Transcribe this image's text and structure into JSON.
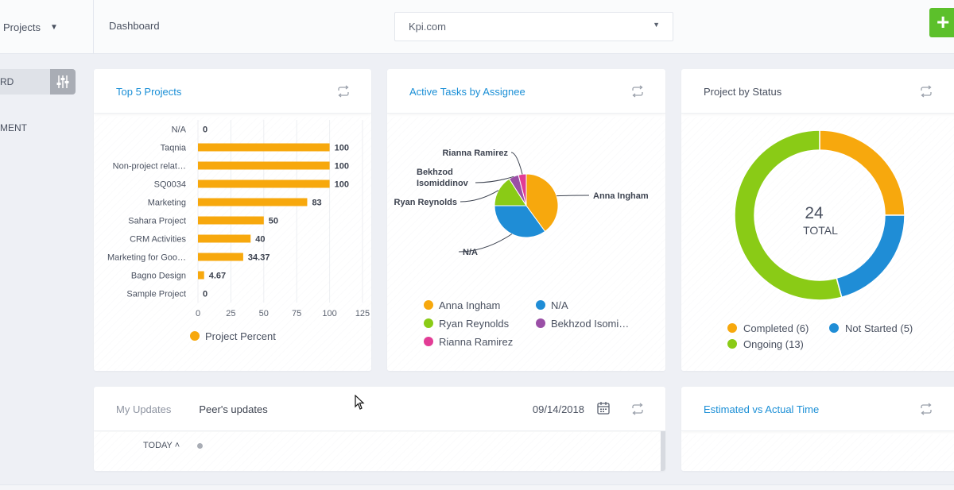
{
  "topbar": {
    "project_selector": "Projects",
    "breadcrumb": "Dashboard",
    "site_select": "Kpi.com",
    "add_label": "+"
  },
  "sidebar": {
    "toggle_label": "RD",
    "item_label": "MENT"
  },
  "cards": {
    "top5": {
      "title": "Top 5 Projects",
      "legend": "Project Percent"
    },
    "active_tasks": {
      "title": "Active Tasks by Assignee"
    },
    "project_status": {
      "title": "Project by Status",
      "total_value": "24",
      "total_label": "TOTAL"
    },
    "updates": {
      "tab_my": "My Updates",
      "tab_peer": "Peer's updates",
      "date": "09/14/2018",
      "today": "TODAY"
    },
    "estimated": {
      "title": "Estimated vs Actual Time"
    }
  },
  "colors": {
    "orange": "#f7a80d",
    "blue": "#1f8dd6",
    "green": "#8acb16",
    "purple": "#9a4fa6",
    "pink": "#e23c95",
    "accent_link": "#1b8fd6",
    "add_button": "#5cc02b"
  },
  "chart_data": [
    {
      "type": "bar",
      "orientation": "horizontal",
      "title": "Top 5 Projects",
      "categories": [
        "N/A",
        "Taqnia",
        "Non-project relat…",
        "SQ0034",
        "Marketing",
        "Sahara Project",
        "CRM Activities",
        "Marketing for Goo…",
        "Bagno Design",
        "Sample Project"
      ],
      "values": [
        0,
        100,
        100,
        100,
        83,
        50,
        40,
        34.37,
        4.67,
        0
      ],
      "value_labels": [
        "0",
        "100",
        "100",
        "100",
        "83",
        "50",
        "40",
        "34.37",
        "4.67",
        "0"
      ],
      "xlim": [
        0,
        125
      ],
      "xticks": [
        0,
        25,
        50,
        75,
        100,
        125
      ],
      "series": [
        {
          "name": "Project Percent",
          "color": "#f7a80d"
        }
      ],
      "legend": "bottom"
    },
    {
      "type": "pie",
      "title": "Active Tasks by Assignee",
      "labels": [
        "Anna Ingham",
        "N/A",
        "Ryan Reynolds",
        "Bekhzod Isomiddinov",
        "Rianna Ramirez"
      ],
      "display_labels": [
        "Anna Ingham",
        "N/A",
        "Ryan Reynolds",
        "Bekhzod Isomiddinov",
        "Rianna Ramirez"
      ],
      "legend_labels": [
        "Anna Ingham",
        "N/A",
        "Ryan Reynolds",
        "Bekhzod Isomi…",
        "Rianna Ramirez"
      ],
      "values": [
        40,
        35,
        16,
        5,
        4
      ],
      "colors": [
        "#f7a80d",
        "#1f8dd6",
        "#8acb16",
        "#9a4fa6",
        "#e23c95"
      ],
      "legend": "bottom"
    },
    {
      "type": "pie",
      "subtype": "donut",
      "title": "Project by Status",
      "labels": [
        "Completed",
        "Not Started",
        "Ongoing"
      ],
      "legend_labels": [
        "Completed (6)",
        "Not Started (5)",
        "Ongoing (13)"
      ],
      "values": [
        6,
        5,
        13
      ],
      "colors": [
        "#f7a80d",
        "#1f8dd6",
        "#8acb16"
      ],
      "center_text": [
        "24",
        "TOTAL"
      ],
      "legend": "bottom"
    }
  ]
}
